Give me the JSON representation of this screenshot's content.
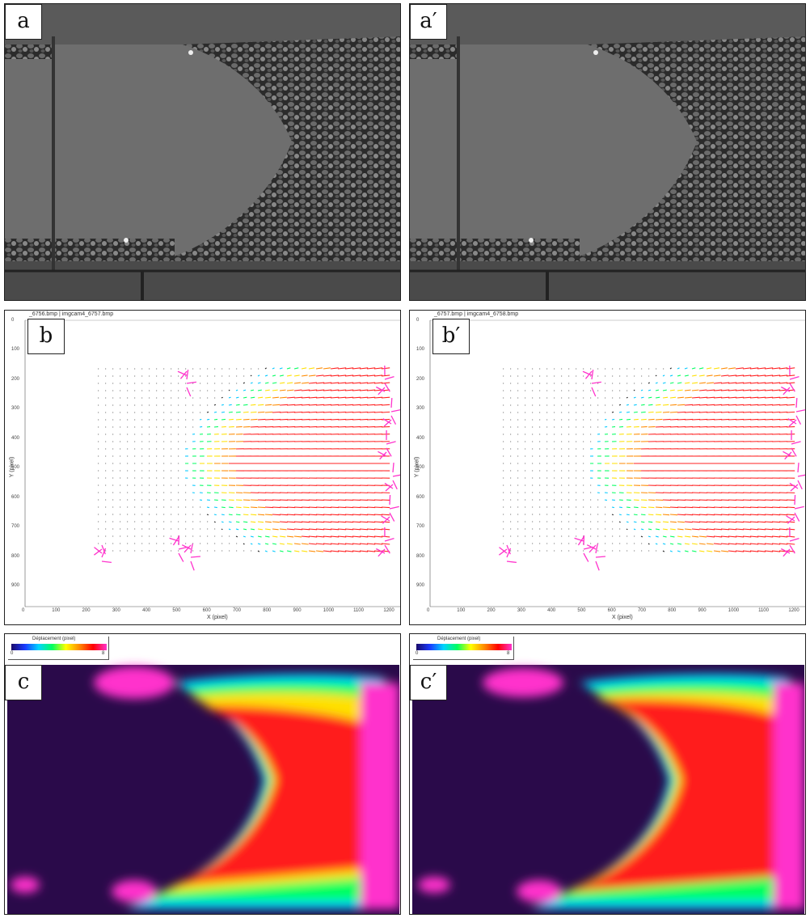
{
  "panels": {
    "a": {
      "label": "a"
    },
    "a_prime": {
      "label": "a′"
    },
    "b": {
      "label": "b",
      "header": "_6756.bmp | imgcam4_6757.bmp",
      "x_axis_label": "X (pixel)",
      "y_axis_label": "Y (pixel)",
      "x_ticks": [
        "0",
        "100",
        "200",
        "300",
        "400",
        "500",
        "600",
        "700",
        "800",
        "900",
        "1000",
        "1100",
        "1200"
      ],
      "y_ticks": [
        "0",
        "100",
        "200",
        "300",
        "400",
        "500",
        "600",
        "700",
        "800",
        "900"
      ]
    },
    "b_prime": {
      "label": "b′",
      "header": "_6757.bmp | imgcam4_6758.bmp",
      "x_axis_label": "X (pixel)",
      "y_axis_label": "Y (pixel)",
      "x_ticks": [
        "0",
        "100",
        "200",
        "300",
        "400",
        "500",
        "600",
        "700",
        "800",
        "900",
        "1000",
        "1100",
        "1200"
      ],
      "y_ticks": [
        "0",
        "100",
        "200",
        "300",
        "400",
        "500",
        "600",
        "700",
        "800",
        "900"
      ]
    },
    "c": {
      "label": "c",
      "colorbar_title": "Déplacement (pixel)",
      "colorbar_min": "0",
      "colorbar_max": "8"
    },
    "c_prime": {
      "label": "c′",
      "colorbar_title": "Déplacement (pixel)",
      "colorbar_min": "0",
      "colorbar_max": "8"
    }
  },
  "colors": {
    "border": "#222222",
    "vector_high": "#ff2a2a",
    "vector_outlier": "#ff33cc",
    "heat_background": "#2a0a4a"
  }
}
